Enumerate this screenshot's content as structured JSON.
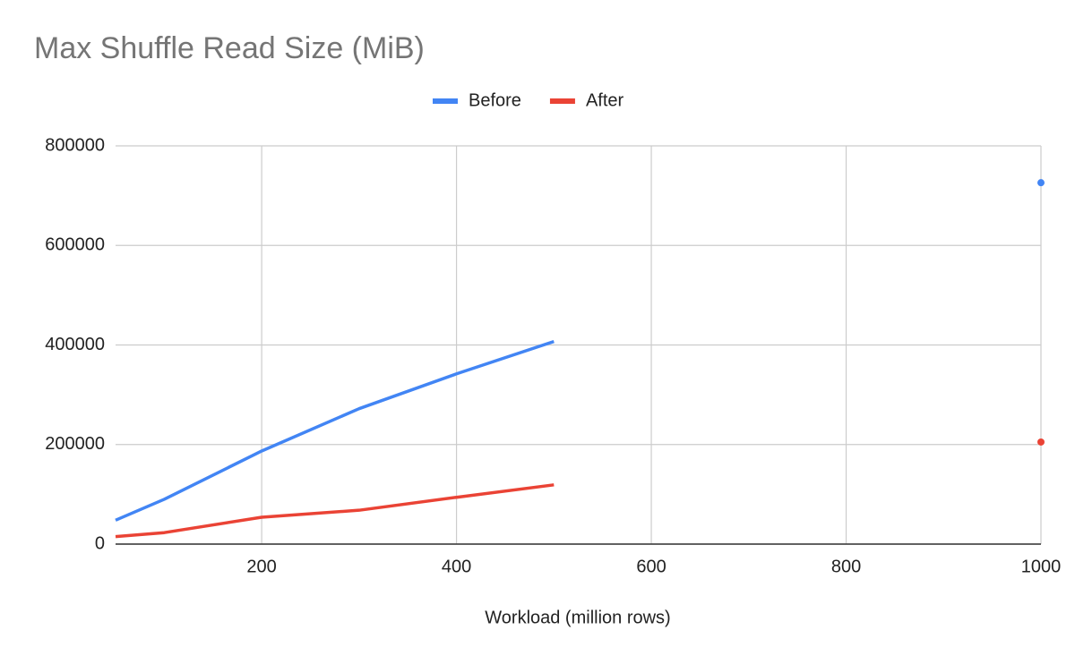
{
  "chart_data": {
    "type": "line",
    "title": "Max Shuffle Read Size (MiB)",
    "xlabel": "Workload (million rows)",
    "x": [
      50,
      100,
      200,
      300,
      400,
      500,
      750,
      1000
    ],
    "series": [
      {
        "name": "Before",
        "color": "#4285f4",
        "values": [
          48000,
          90000,
          187000,
          272000,
          342000,
          407000,
          null,
          726000
        ]
      },
      {
        "name": "After",
        "color": "#ea4335",
        "values": [
          15000,
          23000,
          54000,
          68000,
          94000,
          119000,
          null,
          205000
        ]
      }
    ],
    "xlim": [
      50,
      1000
    ],
    "xticks": [
      200,
      400,
      600,
      800,
      1000
    ],
    "ylim": [
      0,
      800000
    ],
    "yticks": [
      0,
      200000,
      400000,
      600000,
      800000
    ],
    "grid": true,
    "legend": "top"
  }
}
